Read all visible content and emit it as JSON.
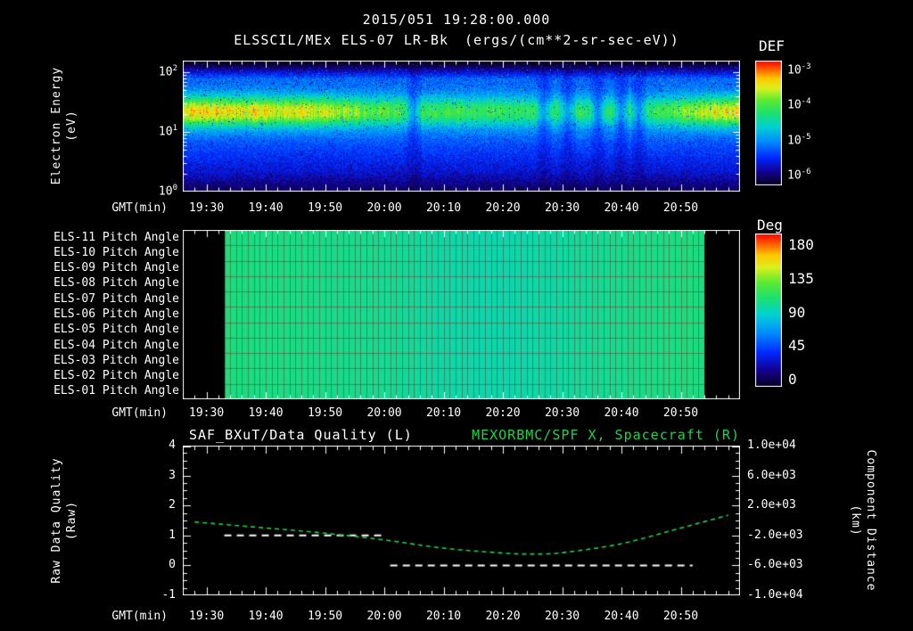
{
  "colors": {
    "background": "#000000",
    "text": "#ffffff",
    "accent_green": "#21d24b",
    "rainbow_stops": [
      [
        0,
        5,
        0,
        30
      ],
      [
        0.1,
        20,
        0,
        140
      ],
      [
        0.22,
        0,
        40,
        255
      ],
      [
        0.35,
        0,
        140,
        255
      ],
      [
        0.47,
        0,
        210,
        210
      ],
      [
        0.58,
        30,
        225,
        110
      ],
      [
        0.68,
        90,
        235,
        50
      ],
      [
        0.78,
        220,
        240,
        30
      ],
      [
        0.86,
        255,
        200,
        0
      ],
      [
        0.93,
        255,
        100,
        0
      ],
      [
        1,
        255,
        0,
        0
      ]
    ]
  },
  "header": {
    "timestamp": "2015/051 19:28:00.000",
    "instrument": "ELSSCIL/MEx ELS-07 LR-Bk",
    "units": "(ergs/(cm**2-sr-sec-eV))",
    "colorbar_label": "DEF"
  },
  "time_axis": {
    "start": "19:26",
    "end": "21:00",
    "ticks": [
      "19:30",
      "19:40",
      "19:50",
      "20:00",
      "20:10",
      "20:20",
      "20:30",
      "20:40",
      "20:50"
    ]
  },
  "panel1": {
    "ylabel_line1": "Electron Energy",
    "ylabel_line2": "(eV)",
    "xlabel": "GMT(min)",
    "y_tick_exponents": [
      2,
      1,
      0
    ],
    "colorbar_tick_exponents": [
      -3,
      -4,
      -5,
      -6
    ]
  },
  "panel2": {
    "row_labels": [
      "ELS-11 Pitch Angle",
      "ELS-10 Pitch Angle",
      "ELS-09 Pitch Angle",
      "ELS-08 Pitch Angle",
      "ELS-07 Pitch Angle",
      "ELS-06 Pitch Angle",
      "ELS-05 Pitch Angle",
      "ELS-04 Pitch Angle",
      "ELS-03 Pitch Angle",
      "ELS-02 Pitch Angle",
      "ELS-01 Pitch Angle"
    ],
    "xlabel": "GMT(min)",
    "colorbar_label": "Deg",
    "colorbar_ticks": [
      "180",
      "135",
      "90",
      "45",
      "0"
    ]
  },
  "panel3": {
    "title_left": "SAF_BXuT/Data Quality (L)",
    "title_right": "MEXORBMC/SPF X, Spacecraft (R)",
    "ylabel_left_line1": "Raw Data Quality",
    "ylabel_left_line2": "(Raw)",
    "ylabel_right_line1": "Component Distance",
    "ylabel_right_line2": "(km)",
    "xlabel": "GMT(min)",
    "left_ticks": [
      "4",
      "3",
      "2",
      "1",
      "0",
      "-1"
    ],
    "right_ticks": [
      "1.0e+04",
      "6.0e+03",
      "2.0e+03",
      "-2.0e+03",
      "-6.0e+03",
      "-1.0e+04"
    ]
  },
  "chart_data": [
    {
      "type": "heatmap",
      "title": "ELSSCIL/MEx ELS-07 LR-Bk",
      "units": "ergs/(cm**2-sr-sec-eV)",
      "xlabel": "GMT(min)",
      "ylabel": "Electron Energy (eV)",
      "x_range": [
        "19:26",
        "21:00"
      ],
      "log_energy_range": [
        0,
        2.2
      ],
      "colorbar": {
        "label": "DEF",
        "scale": "log",
        "tick_exponents": [
          -3,
          -4,
          -5,
          -6
        ]
      },
      "band_center_log_ev": 1.35,
      "band_sigma_log": 0.18,
      "band_intensity": [
        0.52,
        0.55,
        0.5,
        0.52,
        0.48,
        0.5,
        0.46,
        0.4,
        0.36,
        0.33,
        0.32,
        0.33,
        0.31,
        0.33,
        0.3,
        0.31,
        0.29,
        0.3,
        0.28,
        0.3,
        0.34,
        0.42,
        0.5,
        0.52
      ],
      "dropout_times": [
        "20:05",
        "20:27",
        "20:31",
        "20:36",
        "20:40",
        "20:43"
      ]
    },
    {
      "type": "heatmap",
      "title": "ELS Pitch Angles",
      "x_range": [
        "19:26",
        "21:00"
      ],
      "data_start": "19:33",
      "data_end": "20:54",
      "value_range_deg": [
        0,
        180
      ],
      "pitch_profile_deg": [
        101,
        100,
        100,
        99,
        98,
        97,
        95,
        93,
        92,
        92,
        93,
        95,
        97,
        99,
        100,
        101
      ],
      "colorbar": {
        "label": "Deg",
        "ticks": [
          180,
          135,
          90,
          45,
          0
        ]
      }
    },
    {
      "type": "line",
      "x_range": [
        "19:26",
        "21:00"
      ],
      "left_axis": {
        "label": "Raw Data Quality (Raw)",
        "range": [
          -1,
          4
        ]
      },
      "right_axis": {
        "label": "Component Distance (km)",
        "range": [
          -10000,
          10000
        ]
      },
      "series": [
        {
          "name": "SAF_BXuT/Data Quality (L)",
          "axis": "left",
          "color": "#ffffff",
          "style": "dashed",
          "segments": [
            {
              "value": 1,
              "start": "19:33",
              "end": "20:00"
            },
            {
              "value": 0,
              "start": "20:01",
              "end": "20:52"
            }
          ]
        },
        {
          "name": "MEXORBMC/SPF X, Spacecraft (R)",
          "axis": "right",
          "color": "#21d24b",
          "style": "dashed",
          "x": [
            "19:28",
            "19:40",
            "19:50",
            "20:00",
            "20:10",
            "20:20",
            "20:25",
            "20:30",
            "20:40",
            "20:50",
            "20:58"
          ],
          "values_km": [
            -200,
            -1000,
            -1700,
            -2600,
            -3700,
            -4350,
            -4480,
            -4300,
            -3100,
            -1000,
            700
          ]
        }
      ]
    }
  ]
}
